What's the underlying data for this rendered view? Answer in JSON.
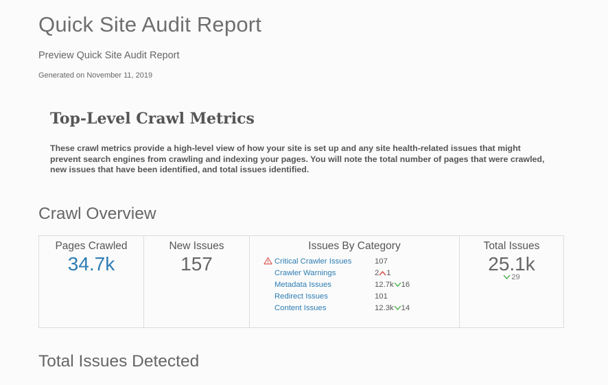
{
  "header": {
    "title": "Quick Site Audit Report",
    "subtitle": "Preview Quick Site Audit Report",
    "generated": "Generated on November 11, 2019"
  },
  "metrics": {
    "heading": "Top-Level Crawl Metrics",
    "description": "These crawl metrics provide a high-level view of how your site is set up and any site health-related issues that might prevent search engines from crawling and indexing your pages. You will note the total number of pages that were crawled, new issues that have been identified, and total issues identified."
  },
  "crawl_overview": {
    "title": "Crawl Overview",
    "pages_crawled": {
      "label": "Pages Crawled",
      "value": "34.7k"
    },
    "new_issues": {
      "label": "New Issues",
      "value": "157"
    },
    "issues_by_category": {
      "label": "Issues By Category",
      "items": [
        {
          "name": "Critical Crawler Issues",
          "value": "107",
          "delta": "",
          "trend": "",
          "icon": "warning-icon"
        },
        {
          "name": "Crawler Warnings",
          "value": "2",
          "delta": "1",
          "trend": "up",
          "icon": ""
        },
        {
          "name": "Metadata Issues",
          "value": "12.7k",
          "delta": "16",
          "trend": "down",
          "icon": ""
        },
        {
          "name": "Redirect Issues",
          "value": "101",
          "delta": "",
          "trend": "",
          "icon": ""
        },
        {
          "name": "Content Issues",
          "value": "12.3k",
          "delta": "14",
          "trend": "down",
          "icon": ""
        }
      ]
    },
    "total_issues": {
      "label": "Total Issues",
      "value": "25.1k",
      "delta": "29",
      "trend": "down"
    }
  },
  "total_issues_detected": {
    "title": "Total Issues Detected"
  },
  "colors": {
    "link": "#2d7db3",
    "up": "#d9534f",
    "down": "#5cb85c",
    "warning": "#d9534f"
  }
}
